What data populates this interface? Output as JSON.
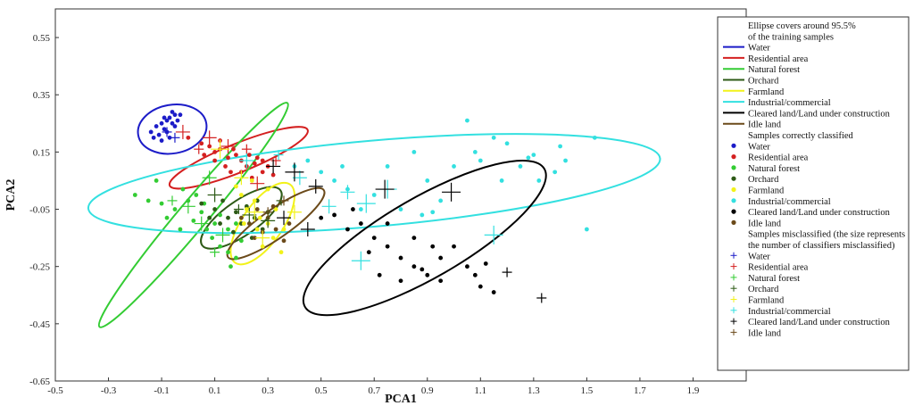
{
  "chart_data": {
    "type": "scatter",
    "xlabel": "PCA1",
    "ylabel": "PCA2",
    "xlim": [
      -0.5,
      2.1
    ],
    "ylim": [
      -0.65,
      0.65
    ],
    "xticks": [
      -0.5,
      -0.3,
      -0.1,
      0.1,
      0.3,
      0.5,
      0.7,
      0.9,
      1.1,
      1.3,
      1.5,
      1.7,
      1.9
    ],
    "yticks": [
      0.55,
      0.35,
      0.15,
      -0.05,
      -0.25,
      -0.45,
      -0.65
    ],
    "legend": {
      "position": "right",
      "ellipse_header": "Ellipse covers around 95.5%",
      "ellipse_header2": "of the training samples",
      "correct_header": "Samples correctly classified",
      "misclassified_header": "Samples misclassified (the size represents",
      "misclassified_header2": "the number of classifiers misclassified)"
    },
    "classes": [
      {
        "name": "Water",
        "color": "#1c1cc8"
      },
      {
        "name": "Residential area",
        "color": "#d42020"
      },
      {
        "name": "Natural forest",
        "color": "#33cc33"
      },
      {
        "name": "Orchard",
        "color": "#2d5a16"
      },
      {
        "name": "Farmland",
        "color": "#f2f21a"
      },
      {
        "name": "Industrial/commercial",
        "color": "#33e0e0"
      },
      {
        "name": "Cleared land/Land under construction",
        "color": "#000000"
      },
      {
        "name": "Idle land",
        "color": "#6b4a1a"
      }
    ],
    "ellipses": [
      {
        "class": 0,
        "cx": -0.06,
        "cy": 0.23,
        "rx": 0.13,
        "ry": 0.085,
        "angle": -10
      },
      {
        "class": 1,
        "cx": 0.19,
        "cy": 0.13,
        "rx": 0.28,
        "ry": 0.05,
        "angle": -22
      },
      {
        "class": 2,
        "cx": 0.02,
        "cy": -0.07,
        "rx": 0.55,
        "ry": 0.05,
        "angle": -50
      },
      {
        "class": 3,
        "cx": 0.2,
        "cy": -0.08,
        "rx": 0.18,
        "ry": 0.06,
        "angle": -35
      },
      {
        "class": 4,
        "cx": 0.28,
        "cy": -0.1,
        "rx": 0.18,
        "ry": 0.07,
        "angle": -55
      },
      {
        "class": 5,
        "cx": 0.7,
        "cy": 0.04,
        "rx": 1.08,
        "ry": 0.15,
        "angle": -5
      },
      {
        "class": 6,
        "cx": 0.89,
        "cy": -0.15,
        "rx": 0.52,
        "ry": 0.14,
        "angle": -30
      },
      {
        "class": 7,
        "cx": 0.33,
        "cy": -0.1,
        "rx": 0.22,
        "ry": 0.05,
        "angle": -35
      }
    ],
    "correct_samples": [
      {
        "class": 0,
        "points": [
          [
            -0.14,
            0.22
          ],
          [
            -0.12,
            0.24
          ],
          [
            -0.1,
            0.25
          ],
          [
            -0.09,
            0.23
          ],
          [
            -0.08,
            0.26
          ],
          [
            -0.07,
            0.27
          ],
          [
            -0.06,
            0.25
          ],
          [
            -0.05,
            0.28
          ],
          [
            -0.06,
            0.29
          ],
          [
            -0.04,
            0.26
          ],
          [
            -0.11,
            0.21
          ],
          [
            -0.08,
            0.22
          ],
          [
            -0.05,
            0.24
          ],
          [
            -0.03,
            0.28
          ],
          [
            -0.13,
            0.2
          ],
          [
            -0.07,
            0.2
          ],
          [
            -0.09,
            0.27
          ],
          [
            -0.1,
            0.19
          ]
        ]
      },
      {
        "class": 1,
        "points": [
          [
            0.0,
            0.2
          ],
          [
            0.05,
            0.18
          ],
          [
            0.08,
            0.17
          ],
          [
            0.1,
            0.15
          ],
          [
            0.12,
            0.16
          ],
          [
            0.15,
            0.13
          ],
          [
            0.18,
            0.14
          ],
          [
            0.2,
            0.12
          ],
          [
            0.22,
            0.1
          ],
          [
            0.25,
            0.11
          ],
          [
            0.28,
            0.08
          ],
          [
            0.3,
            0.1
          ],
          [
            0.1,
            0.12
          ],
          [
            0.14,
            0.1
          ],
          [
            0.17,
            0.16
          ],
          [
            0.23,
            0.14
          ],
          [
            0.26,
            0.13
          ],
          [
            0.06,
            0.14
          ],
          [
            0.32,
            0.07
          ],
          [
            0.2,
            0.08
          ],
          [
            0.12,
            0.19
          ],
          [
            0.24,
            0.06
          ],
          [
            0.28,
            0.12
          ],
          [
            0.16,
            0.08
          ]
        ]
      },
      {
        "class": 2,
        "points": [
          [
            -0.2,
            0.0
          ],
          [
            -0.15,
            -0.02
          ],
          [
            -0.1,
            -0.03
          ],
          [
            -0.05,
            -0.05
          ],
          [
            0.0,
            -0.02
          ],
          [
            0.05,
            -0.06
          ],
          [
            0.08,
            -0.08
          ],
          [
            0.1,
            -0.1
          ],
          [
            0.12,
            -0.07
          ],
          [
            0.15,
            -0.12
          ],
          [
            0.18,
            -0.1
          ],
          [
            -0.02,
            0.02
          ],
          [
            0.03,
            0.0
          ],
          [
            0.06,
            -0.03
          ],
          [
            -0.08,
            -0.08
          ],
          [
            0.09,
            -0.15
          ],
          [
            0.12,
            -0.18
          ],
          [
            0.15,
            -0.2
          ],
          [
            0.18,
            -0.22
          ],
          [
            -0.12,
            0.05
          ],
          [
            0.02,
            -0.09
          ],
          [
            0.2,
            -0.16
          ],
          [
            0.07,
            -0.12
          ],
          [
            -0.03,
            -0.12
          ],
          [
            0.16,
            -0.25
          ]
        ]
      },
      {
        "class": 3,
        "points": [
          [
            0.05,
            -0.03
          ],
          [
            0.1,
            -0.05
          ],
          [
            0.13,
            -0.02
          ],
          [
            0.15,
            -0.08
          ],
          [
            0.18,
            -0.06
          ],
          [
            0.2,
            -0.1
          ],
          [
            0.22,
            -0.04
          ],
          [
            0.25,
            -0.08
          ],
          [
            0.28,
            -0.12
          ],
          [
            0.3,
            -0.06
          ],
          [
            0.12,
            -0.1
          ],
          [
            0.17,
            -0.13
          ],
          [
            0.08,
            -0.08
          ],
          [
            0.24,
            -0.15
          ],
          [
            0.26,
            -0.02
          ]
        ]
      },
      {
        "class": 4,
        "points": [
          [
            0.18,
            0.03
          ],
          [
            0.2,
            0.0
          ],
          [
            0.22,
            -0.05
          ],
          [
            0.25,
            -0.02
          ],
          [
            0.27,
            -0.08
          ],
          [
            0.3,
            -0.1
          ],
          [
            0.32,
            -0.15
          ],
          [
            0.28,
            -0.18
          ],
          [
            0.35,
            -0.2
          ],
          [
            0.33,
            -0.05
          ],
          [
            0.24,
            0.05
          ],
          [
            0.3,
            0.02
          ],
          [
            0.26,
            -0.12
          ],
          [
            0.36,
            -0.12
          ],
          [
            0.21,
            -0.1
          ]
        ]
      },
      {
        "class": 5,
        "points": [
          [
            1.05,
            0.26
          ],
          [
            1.15,
            0.2
          ],
          [
            1.2,
            0.18
          ],
          [
            1.25,
            0.1
          ],
          [
            1.32,
            0.05
          ],
          [
            1.38,
            0.08
          ],
          [
            1.42,
            0.12
          ],
          [
            1.5,
            -0.12
          ],
          [
            1.53,
            0.2
          ],
          [
            1.1,
            0.12
          ],
          [
            0.9,
            0.05
          ],
          [
            0.95,
            -0.02
          ],
          [
            0.85,
            0.15
          ],
          [
            0.75,
            0.1
          ],
          [
            0.7,
            0.0
          ],
          [
            0.6,
            0.02
          ],
          [
            0.55,
            0.05
          ],
          [
            0.5,
            0.08
          ],
          [
            0.45,
            0.12
          ],
          [
            0.4,
            0.1
          ],
          [
            0.8,
            -0.05
          ],
          [
            0.88,
            -0.07
          ],
          [
            1.0,
            0.1
          ],
          [
            1.3,
            0.14
          ],
          [
            1.4,
            0.17
          ],
          [
            1.18,
            0.05
          ],
          [
            1.28,
            0.13
          ],
          [
            0.65,
            -0.05
          ],
          [
            0.92,
            -0.06
          ],
          [
            0.58,
            0.1
          ],
          [
            1.08,
            0.15
          ]
        ]
      },
      {
        "class": 6,
        "points": [
          [
            0.5,
            -0.08
          ],
          [
            0.55,
            -0.07
          ],
          [
            0.6,
            -0.12
          ],
          [
            0.65,
            -0.1
          ],
          [
            0.7,
            -0.15
          ],
          [
            0.75,
            -0.18
          ],
          [
            0.8,
            -0.22
          ],
          [
            0.85,
            -0.25
          ],
          [
            0.9,
            -0.28
          ],
          [
            0.95,
            -0.22
          ],
          [
            1.0,
            -0.18
          ],
          [
            1.05,
            -0.25
          ],
          [
            1.1,
            -0.32
          ],
          [
            1.15,
            -0.34
          ],
          [
            0.85,
            -0.15
          ],
          [
            0.75,
            -0.1
          ],
          [
            0.72,
            -0.28
          ],
          [
            0.8,
            -0.3
          ],
          [
            0.95,
            -0.3
          ],
          [
            1.08,
            -0.28
          ],
          [
            1.12,
            -0.24
          ],
          [
            0.68,
            -0.2
          ],
          [
            0.62,
            -0.05
          ],
          [
            0.92,
            -0.18
          ],
          [
            0.88,
            -0.26
          ]
        ]
      },
      {
        "class": 7,
        "points": [
          [
            0.2,
            -0.08
          ],
          [
            0.23,
            -0.1
          ],
          [
            0.26,
            -0.05
          ],
          [
            0.28,
            -0.13
          ],
          [
            0.3,
            -0.08
          ],
          [
            0.33,
            -0.12
          ],
          [
            0.36,
            -0.16
          ],
          [
            0.38,
            -0.1
          ],
          [
            0.25,
            -0.15
          ],
          [
            0.32,
            -0.04
          ]
        ]
      }
    ],
    "misclassified_samples": [
      {
        "class": 0,
        "points": [
          [
            -0.08,
            0.22,
            1
          ],
          [
            -0.05,
            0.2,
            1
          ]
        ]
      },
      {
        "class": 1,
        "points": [
          [
            -0.02,
            0.22,
            2
          ],
          [
            0.08,
            0.2,
            2
          ],
          [
            0.04,
            0.16,
            1
          ],
          [
            0.15,
            0.17,
            2
          ],
          [
            0.22,
            0.16,
            1
          ],
          [
            0.33,
            0.12,
            1
          ],
          [
            0.26,
            0.04,
            2
          ]
        ]
      },
      {
        "class": 2,
        "points": [
          [
            0.08,
            0.06,
            2
          ],
          [
            0.0,
            -0.04,
            2
          ],
          [
            0.05,
            -0.1,
            2
          ],
          [
            0.13,
            -0.14,
            2
          ],
          [
            0.1,
            -0.2,
            1
          ],
          [
            -0.06,
            -0.02,
            1
          ]
        ]
      },
      {
        "class": 3,
        "points": [
          [
            0.1,
            0.0,
            2
          ],
          [
            0.19,
            -0.05,
            1
          ],
          [
            0.23,
            -0.07,
            2
          ],
          [
            0.3,
            -0.09,
            2
          ],
          [
            0.35,
            -0.02,
            1
          ]
        ]
      },
      {
        "class": 4,
        "points": [
          [
            0.12,
            0.16,
            3
          ],
          [
            0.2,
            0.06,
            2
          ],
          [
            0.25,
            -0.06,
            3
          ],
          [
            0.28,
            -0.15,
            2
          ],
          [
            0.4,
            -0.06,
            2
          ]
        ]
      },
      {
        "class": 5,
        "points": [
          [
            0.22,
            0.12,
            2
          ],
          [
            0.34,
            0.14,
            1
          ],
          [
            0.42,
            0.06,
            2
          ],
          [
            0.6,
            0.01,
            2
          ],
          [
            0.67,
            -0.03,
            3
          ],
          [
            0.65,
            -0.23,
            3
          ],
          [
            0.75,
            0.02,
            3
          ],
          [
            1.15,
            -0.14,
            3
          ],
          [
            0.53,
            -0.04,
            2
          ]
        ]
      },
      {
        "class": 6,
        "points": [
          [
            0.32,
            0.1,
            2
          ],
          [
            0.4,
            0.08,
            3
          ],
          [
            0.48,
            0.03,
            2
          ],
          [
            0.74,
            0.02,
            3
          ],
          [
            0.99,
            0.01,
            3
          ],
          [
            1.2,
            -0.27,
            1
          ],
          [
            1.33,
            -0.36,
            1
          ],
          [
            0.36,
            -0.08,
            2
          ],
          [
            0.45,
            -0.12,
            2
          ]
        ]
      },
      {
        "class": 7,
        "points": [
          [
            0.3,
            -0.06,
            1
          ],
          [
            0.36,
            -0.02,
            1
          ]
        ]
      }
    ]
  }
}
